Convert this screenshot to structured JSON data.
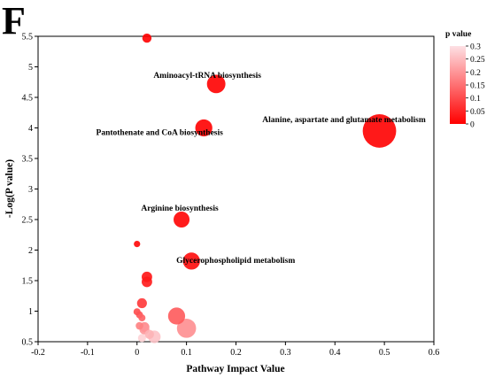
{
  "panel_label": "F",
  "chart_data": {
    "type": "scatter",
    "title": "",
    "xlabel": "Pathway Impact Value",
    "ylabel": "-Log(P value)",
    "xlim": [
      -0.2,
      0.6
    ],
    "ylim": [
      0.5,
      5.5
    ],
    "xticks": [
      -0.2,
      -0.1,
      0,
      0.1,
      0.2,
      0.3,
      0.4,
      0.5,
      0.6
    ],
    "yticks": [
      0.5,
      1,
      1.5,
      2,
      2.5,
      3,
      3.5,
      4,
      4.5,
      5,
      5.5
    ],
    "grid": false,
    "colorbar": {
      "title": "p value",
      "ticks": [
        0,
        0.05,
        0.1,
        0.15,
        0.2,
        0.25,
        0.3
      ],
      "range": [
        0,
        0.3
      ],
      "color_low": "#ff0000",
      "color_high": "#fde0e4",
      "placement": "top-right"
    },
    "points": [
      {
        "x": 0.02,
        "y": 5.47,
        "p": 3e-06,
        "size": 0.008,
        "label": ""
      },
      {
        "x": 0.16,
        "y": 4.72,
        "p": 1.9e-05,
        "size": 0.055,
        "label": "Aminoacyl-tRNA biosynthesis"
      },
      {
        "x": 0.135,
        "y": 4.0,
        "p": 0.0001,
        "size": 0.045,
        "label": "Pantothenate and CoA biosynthesis"
      },
      {
        "x": 0.49,
        "y": 3.95,
        "p": 0.00011,
        "size": 0.22,
        "label": "Alanine, aspartate and glutamate metabolism"
      },
      {
        "x": 0.09,
        "y": 2.5,
        "p": 0.0032,
        "size": 0.038,
        "label": "Arginine biosynthesis"
      },
      {
        "x": 0.0,
        "y": 2.1,
        "p": 0.008,
        "size": 0.002,
        "label": ""
      },
      {
        "x": 0.11,
        "y": 1.82,
        "p": 0.015,
        "size": 0.045,
        "label": "Glycerophospholipid metabolism"
      },
      {
        "x": 0.02,
        "y": 1.56,
        "p": 0.027,
        "size": 0.012,
        "label": ""
      },
      {
        "x": 0.02,
        "y": 1.48,
        "p": 0.033,
        "size": 0.012,
        "label": ""
      },
      {
        "x": 0.01,
        "y": 1.13,
        "p": 0.074,
        "size": 0.01,
        "label": ""
      },
      {
        "x": 0.0,
        "y": 0.99,
        "p": 0.1,
        "size": 0.003,
        "label": ""
      },
      {
        "x": 0.005,
        "y": 0.94,
        "p": 0.11,
        "size": 0.003,
        "label": ""
      },
      {
        "x": 0.08,
        "y": 0.92,
        "p": 0.12,
        "size": 0.045,
        "label": ""
      },
      {
        "x": 0.01,
        "y": 0.89,
        "p": 0.13,
        "size": 0.003,
        "label": ""
      },
      {
        "x": 0.005,
        "y": 0.76,
        "p": 0.17,
        "size": 0.004,
        "label": ""
      },
      {
        "x": 0.015,
        "y": 0.74,
        "p": 0.18,
        "size": 0.01,
        "label": ""
      },
      {
        "x": 0.1,
        "y": 0.72,
        "p": 0.19,
        "size": 0.06,
        "label": ""
      },
      {
        "x": 0.015,
        "y": 0.7,
        "p": 0.2,
        "size": 0.01,
        "label": ""
      },
      {
        "x": 0.025,
        "y": 0.62,
        "p": 0.24,
        "size": 0.008,
        "label": ""
      },
      {
        "x": 0.035,
        "y": 0.58,
        "p": 0.26,
        "size": 0.02,
        "label": ""
      },
      {
        "x": 0.01,
        "y": 0.56,
        "p": 0.28,
        "size": 0.005,
        "label": ""
      }
    ]
  }
}
